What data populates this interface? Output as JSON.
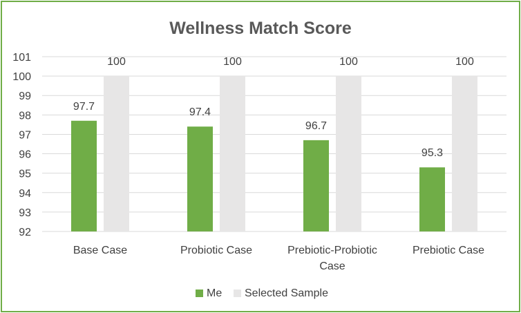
{
  "chart_data": {
    "type": "bar",
    "title": "Wellness Match Score",
    "xlabel": "",
    "ylabel": "",
    "categories": [
      [
        "Base Case"
      ],
      [
        "Probiotic Case"
      ],
      [
        "Prebiotic-Probiotic",
        "Case"
      ],
      [
        "Prebiotic Case"
      ]
    ],
    "series": [
      {
        "name": "Me",
        "values": [
          97.7,
          97.4,
          96.7,
          95.3
        ],
        "color": "#70ad47"
      },
      {
        "name": "Selected Sample",
        "values": [
          100,
          100,
          100,
          100
        ],
        "color": "#e7e6e6"
      }
    ],
    "data_labels": [
      [
        "97.7",
        "97.4",
        "96.7",
        "95.3"
      ],
      [
        "100",
        "100",
        "100",
        "100"
      ]
    ],
    "ylim": [
      92,
      101
    ],
    "yticks": [
      92,
      93,
      94,
      95,
      96,
      97,
      98,
      99,
      100,
      101
    ],
    "grid": true,
    "legend": "bottom",
    "gridColor": "#d9d9d9",
    "borderColor": "#70ad47"
  }
}
